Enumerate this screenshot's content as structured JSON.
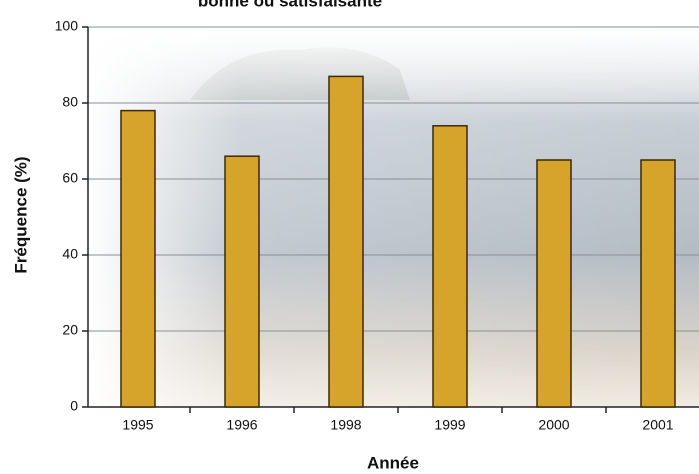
{
  "chart_data": {
    "type": "bar",
    "title": "bonne ou satisfaisante",
    "x_label": "Année",
    "y_label": "Fréquence (%)",
    "categories": [
      "1995",
      "1996",
      "1998",
      "1999",
      "2000",
      "2001"
    ],
    "values": [
      78,
      66,
      87,
      74,
      65,
      65
    ],
    "color": "#d6a42a",
    "ylim": [
      0,
      100
    ],
    "yticks": [
      0,
      20,
      40,
      60,
      80,
      100
    ],
    "grid": true
  }
}
